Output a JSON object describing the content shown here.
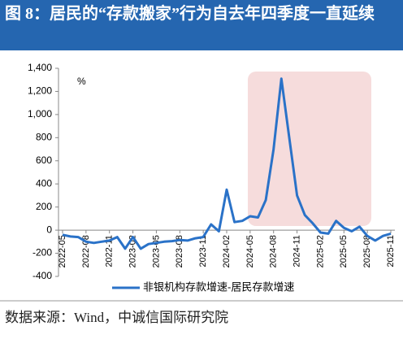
{
  "chart_data": {
    "type": "line",
    "title": "图 8：居民的“存款搬家”行为自去年四季度一直延续",
    "y_label": "%",
    "source": "数据来源：Wind，中诚信国际研究院",
    "categories": [
      "2022-05",
      null,
      null,
      "2022-08",
      null,
      null,
      "2022-11",
      null,
      null,
      "2023-02",
      null,
      null,
      "2023-05",
      null,
      null,
      "2023-08",
      null,
      null,
      "2023-11",
      null,
      null,
      "2024-02",
      null,
      null,
      "2024-05",
      null,
      null,
      "2024-08",
      null,
      null,
      "2024-11",
      null,
      null,
      "2025-02",
      null,
      null,
      "2025-05",
      null,
      null,
      "2025-08",
      null,
      null,
      "2025-11"
    ],
    "series": [
      {
        "name": "非银机构存款增速-居民存款增速",
        "color": "#2a72c8",
        "values": [
          -40,
          -55,
          -60,
          -100,
          -110,
          -100,
          -90,
          -60,
          -160,
          -60,
          -160,
          -120,
          -110,
          -100,
          -95,
          -85,
          -90,
          -70,
          -60,
          50,
          -10,
          350,
          70,
          80,
          120,
          110,
          260,
          700,
          1310,
          800,
          300,
          130,
          60,
          -20,
          -30,
          80,
          20,
          -10,
          30,
          -50,
          -90,
          -50,
          -30
        ]
      }
    ],
    "ylim": [
      -400,
      1400
    ],
    "yticks": [
      -400,
      -200,
      0,
      200,
      400,
      600,
      800,
      {
        "value": 1000,
        "label": "1,000"
      },
      {
        "value": 1200,
        "label": "1,200"
      },
      {
        "value": 1400,
        "label": "1,400"
      }
    ],
    "legend": "bottom"
  }
}
